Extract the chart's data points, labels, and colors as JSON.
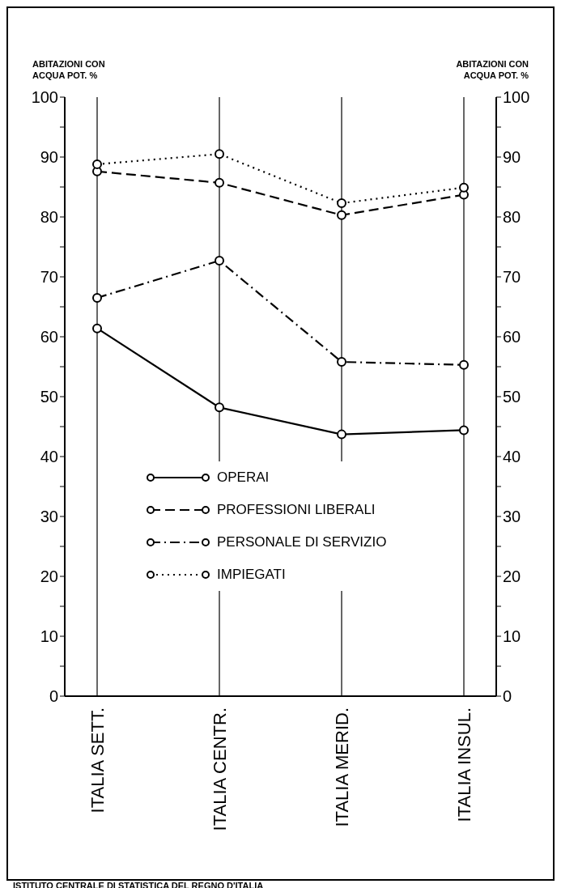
{
  "chart_data": {
    "type": "line",
    "ylabel": "ABITAZIONI CON ACQUA POT. %",
    "y2label": "ABITAZIONI CON ACQUA POT. %",
    "categories": [
      "ITALIA SETT.",
      "ITALIA CENTR.",
      "ITALIA MERID.",
      "ITALIA INSUL."
    ],
    "series": [
      {
        "name": "OPERAI",
        "color": "#000000",
        "line_style": "solid",
        "values": [
          61.4,
          48.2,
          43.7,
          44.4
        ]
      },
      {
        "name": "PROFESSIONI LIBERALI",
        "color": "#000000",
        "line_style": "dashed",
        "values": [
          87.6,
          85.7,
          80.3,
          83.7
        ]
      },
      {
        "name": "PERSONALE DI SERVIZIO",
        "color": "#000000",
        "line_style": "dashdot",
        "values": [
          66.5,
          72.7,
          55.8,
          55.3
        ]
      },
      {
        "name": "IMPIEGATI",
        "color": "#000000",
        "line_style": "dotted",
        "values": [
          88.8,
          90.5,
          82.3,
          84.9
        ]
      }
    ],
    "ylim": [
      0,
      100
    ],
    "yticks": [
      0,
      {
        "value": 5,
        "label": null
      },
      10,
      {
        "value": 15,
        "label": null
      },
      20,
      {
        "value": 25,
        "label": null
      },
      30,
      {
        "value": 35,
        "label": null
      },
      40,
      {
        "value": 45,
        "label": null
      },
      50,
      {
        "value": 55,
        "label": null
      },
      60,
      {
        "value": 65,
        "label": null
      },
      70,
      {
        "value": 75,
        "label": null
      },
      80,
      {
        "value": 85,
        "label": null
      },
      90,
      {
        "value": 95,
        "label": null
      },
      100
    ],
    "y2lim": [
      0,
      100
    ],
    "y2ticks": [
      0,
      {
        "value": 5,
        "label": null
      },
      10,
      {
        "value": 15,
        "label": null
      },
      20,
      {
        "value": 25,
        "label": null
      },
      30,
      {
        "value": 35,
        "label": null
      },
      40,
      {
        "value": 45,
        "label": null
      },
      50,
      {
        "value": 55,
        "label": null
      },
      60,
      {
        "value": 65,
        "label": null
      },
      70,
      {
        "value": 75,
        "label": null
      },
      80,
      {
        "value": 85,
        "label": null
      },
      90,
      {
        "value": 95,
        "label": null
      },
      100
    ],
    "grid": "x",
    "legend": "bottom",
    "marker": "circle",
    "annotations": [
      "ISTITUTO CENTRALE DI STATISTICA DEL REGNO D'ITALIA"
    ]
  }
}
